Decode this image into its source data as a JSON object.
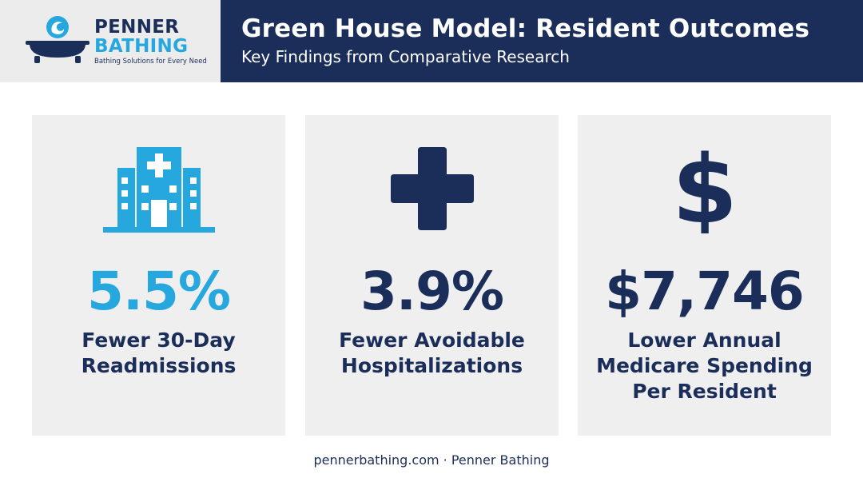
{
  "brand": {
    "name_line1": "PENNER",
    "name_line2": "BATHING",
    "tagline": "Bathing Solutions for Every Need",
    "logo_icon": "bathtub-wave-icon"
  },
  "header": {
    "title": "Green House Model: Resident Outcomes",
    "subtitle": "Key Findings from Comparative Research"
  },
  "cards": [
    {
      "icon": "hospital-building-icon",
      "value": "5.5%",
      "label_line1": "Fewer 30-Day",
      "label_line2": "Readmissions",
      "value_color": "#26a7de"
    },
    {
      "icon": "medical-cross-icon",
      "value": "3.9%",
      "label_line1": "Fewer Avoidable",
      "label_line2": "Hospitalizations",
      "value_color": "#1b2e5a"
    },
    {
      "icon": "dollar-sign-icon",
      "value": "$7,746",
      "label_line1": "Lower Annual",
      "label_line2": "Medicare Spending",
      "label_line3": "Per Resident",
      "value_color": "#1b2e5a"
    }
  ],
  "footer": {
    "text": "pennerbathing.com · Penner Bathing"
  },
  "colors": {
    "navy": "#1b2e5a",
    "accent_blue": "#26a7de",
    "card_bg": "#efefef",
    "logo_bg": "#ececec"
  }
}
